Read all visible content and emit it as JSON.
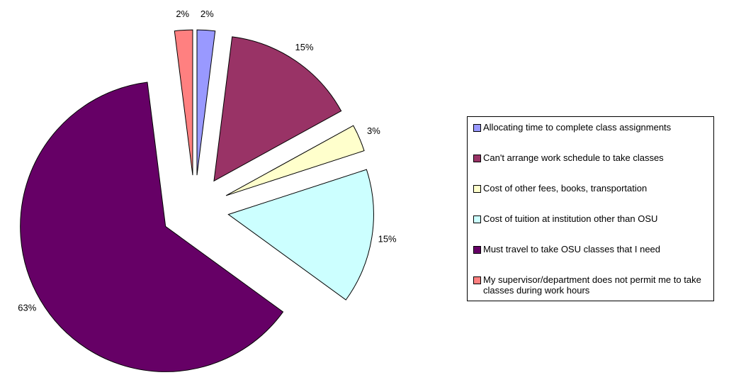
{
  "chart_data": {
    "type": "pie",
    "categories": [
      "Allocating time to complete class assignments",
      "Can't arrange work schedule to take classes",
      "Cost of other fees, books, transportation",
      "Cost of tuition at institution other than OSU",
      "Must travel to take OSU classes that I need",
      "My supervisor/department does not permit me to take classes during work hours"
    ],
    "values": [
      2,
      15,
      3,
      15,
      63,
      2
    ],
    "value_labels": [
      "2%",
      "15%",
      "3%",
      "15%",
      "63%",
      "2%"
    ],
    "colors": [
      "#9999ff",
      "#993366",
      "#ffffcc",
      "#ccffff",
      "#660066",
      "#ff8080"
    ],
    "legend": "right"
  }
}
